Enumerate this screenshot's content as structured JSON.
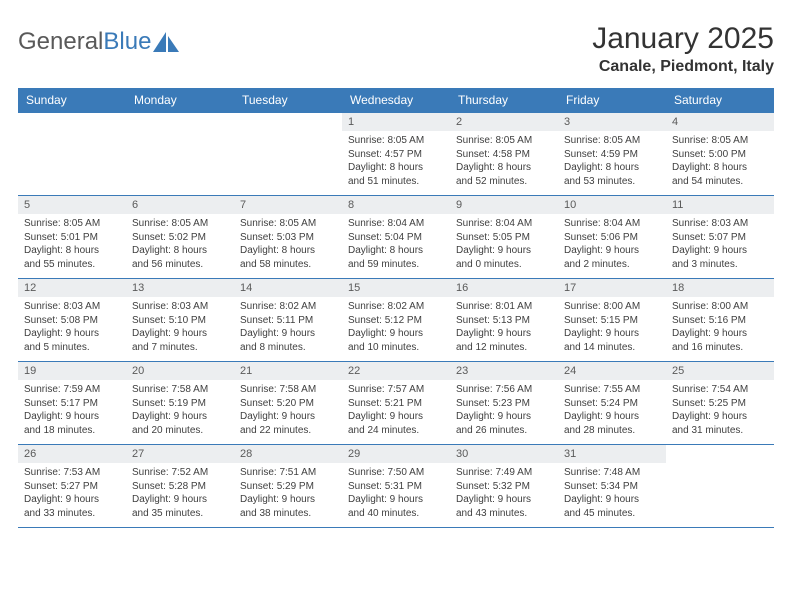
{
  "logo": {
    "part1": "General",
    "part2": "Blue"
  },
  "title": "January 2025",
  "subtitle": "Canale, Piedmont, Italy",
  "colors": {
    "header_bg": "#3a7ab8",
    "header_text": "#ffffff",
    "daynum_bg": "#eceef0",
    "border": "#3a7ab8",
    "text": "#3f3f3f"
  },
  "day_names": [
    "Sunday",
    "Monday",
    "Tuesday",
    "Wednesday",
    "Thursday",
    "Friday",
    "Saturday"
  ],
  "weeks": [
    [
      {
        "n": "",
        "empty": true
      },
      {
        "n": "",
        "empty": true
      },
      {
        "n": "",
        "empty": true
      },
      {
        "n": "1",
        "sr": "Sunrise: 8:05 AM",
        "ss": "Sunset: 4:57 PM",
        "d1": "Daylight: 8 hours",
        "d2": "and 51 minutes."
      },
      {
        "n": "2",
        "sr": "Sunrise: 8:05 AM",
        "ss": "Sunset: 4:58 PM",
        "d1": "Daylight: 8 hours",
        "d2": "and 52 minutes."
      },
      {
        "n": "3",
        "sr": "Sunrise: 8:05 AM",
        "ss": "Sunset: 4:59 PM",
        "d1": "Daylight: 8 hours",
        "d2": "and 53 minutes."
      },
      {
        "n": "4",
        "sr": "Sunrise: 8:05 AM",
        "ss": "Sunset: 5:00 PM",
        "d1": "Daylight: 8 hours",
        "d2": "and 54 minutes."
      }
    ],
    [
      {
        "n": "5",
        "sr": "Sunrise: 8:05 AM",
        "ss": "Sunset: 5:01 PM",
        "d1": "Daylight: 8 hours",
        "d2": "and 55 minutes."
      },
      {
        "n": "6",
        "sr": "Sunrise: 8:05 AM",
        "ss": "Sunset: 5:02 PM",
        "d1": "Daylight: 8 hours",
        "d2": "and 56 minutes."
      },
      {
        "n": "7",
        "sr": "Sunrise: 8:05 AM",
        "ss": "Sunset: 5:03 PM",
        "d1": "Daylight: 8 hours",
        "d2": "and 58 minutes."
      },
      {
        "n": "8",
        "sr": "Sunrise: 8:04 AM",
        "ss": "Sunset: 5:04 PM",
        "d1": "Daylight: 8 hours",
        "d2": "and 59 minutes."
      },
      {
        "n": "9",
        "sr": "Sunrise: 8:04 AM",
        "ss": "Sunset: 5:05 PM",
        "d1": "Daylight: 9 hours",
        "d2": "and 0 minutes."
      },
      {
        "n": "10",
        "sr": "Sunrise: 8:04 AM",
        "ss": "Sunset: 5:06 PM",
        "d1": "Daylight: 9 hours",
        "d2": "and 2 minutes."
      },
      {
        "n": "11",
        "sr": "Sunrise: 8:03 AM",
        "ss": "Sunset: 5:07 PM",
        "d1": "Daylight: 9 hours",
        "d2": "and 3 minutes."
      }
    ],
    [
      {
        "n": "12",
        "sr": "Sunrise: 8:03 AM",
        "ss": "Sunset: 5:08 PM",
        "d1": "Daylight: 9 hours",
        "d2": "and 5 minutes."
      },
      {
        "n": "13",
        "sr": "Sunrise: 8:03 AM",
        "ss": "Sunset: 5:10 PM",
        "d1": "Daylight: 9 hours",
        "d2": "and 7 minutes."
      },
      {
        "n": "14",
        "sr": "Sunrise: 8:02 AM",
        "ss": "Sunset: 5:11 PM",
        "d1": "Daylight: 9 hours",
        "d2": "and 8 minutes."
      },
      {
        "n": "15",
        "sr": "Sunrise: 8:02 AM",
        "ss": "Sunset: 5:12 PM",
        "d1": "Daylight: 9 hours",
        "d2": "and 10 minutes."
      },
      {
        "n": "16",
        "sr": "Sunrise: 8:01 AM",
        "ss": "Sunset: 5:13 PM",
        "d1": "Daylight: 9 hours",
        "d2": "and 12 minutes."
      },
      {
        "n": "17",
        "sr": "Sunrise: 8:00 AM",
        "ss": "Sunset: 5:15 PM",
        "d1": "Daylight: 9 hours",
        "d2": "and 14 minutes."
      },
      {
        "n": "18",
        "sr": "Sunrise: 8:00 AM",
        "ss": "Sunset: 5:16 PM",
        "d1": "Daylight: 9 hours",
        "d2": "and 16 minutes."
      }
    ],
    [
      {
        "n": "19",
        "sr": "Sunrise: 7:59 AM",
        "ss": "Sunset: 5:17 PM",
        "d1": "Daylight: 9 hours",
        "d2": "and 18 minutes."
      },
      {
        "n": "20",
        "sr": "Sunrise: 7:58 AM",
        "ss": "Sunset: 5:19 PM",
        "d1": "Daylight: 9 hours",
        "d2": "and 20 minutes."
      },
      {
        "n": "21",
        "sr": "Sunrise: 7:58 AM",
        "ss": "Sunset: 5:20 PM",
        "d1": "Daylight: 9 hours",
        "d2": "and 22 minutes."
      },
      {
        "n": "22",
        "sr": "Sunrise: 7:57 AM",
        "ss": "Sunset: 5:21 PM",
        "d1": "Daylight: 9 hours",
        "d2": "and 24 minutes."
      },
      {
        "n": "23",
        "sr": "Sunrise: 7:56 AM",
        "ss": "Sunset: 5:23 PM",
        "d1": "Daylight: 9 hours",
        "d2": "and 26 minutes."
      },
      {
        "n": "24",
        "sr": "Sunrise: 7:55 AM",
        "ss": "Sunset: 5:24 PM",
        "d1": "Daylight: 9 hours",
        "d2": "and 28 minutes."
      },
      {
        "n": "25",
        "sr": "Sunrise: 7:54 AM",
        "ss": "Sunset: 5:25 PM",
        "d1": "Daylight: 9 hours",
        "d2": "and 31 minutes."
      }
    ],
    [
      {
        "n": "26",
        "sr": "Sunrise: 7:53 AM",
        "ss": "Sunset: 5:27 PM",
        "d1": "Daylight: 9 hours",
        "d2": "and 33 minutes."
      },
      {
        "n": "27",
        "sr": "Sunrise: 7:52 AM",
        "ss": "Sunset: 5:28 PM",
        "d1": "Daylight: 9 hours",
        "d2": "and 35 minutes."
      },
      {
        "n": "28",
        "sr": "Sunrise: 7:51 AM",
        "ss": "Sunset: 5:29 PM",
        "d1": "Daylight: 9 hours",
        "d2": "and 38 minutes."
      },
      {
        "n": "29",
        "sr": "Sunrise: 7:50 AM",
        "ss": "Sunset: 5:31 PM",
        "d1": "Daylight: 9 hours",
        "d2": "and 40 minutes."
      },
      {
        "n": "30",
        "sr": "Sunrise: 7:49 AM",
        "ss": "Sunset: 5:32 PM",
        "d1": "Daylight: 9 hours",
        "d2": "and 43 minutes."
      },
      {
        "n": "31",
        "sr": "Sunrise: 7:48 AM",
        "ss": "Sunset: 5:34 PM",
        "d1": "Daylight: 9 hours",
        "d2": "and 45 minutes."
      },
      {
        "n": "",
        "empty": true
      }
    ]
  ]
}
